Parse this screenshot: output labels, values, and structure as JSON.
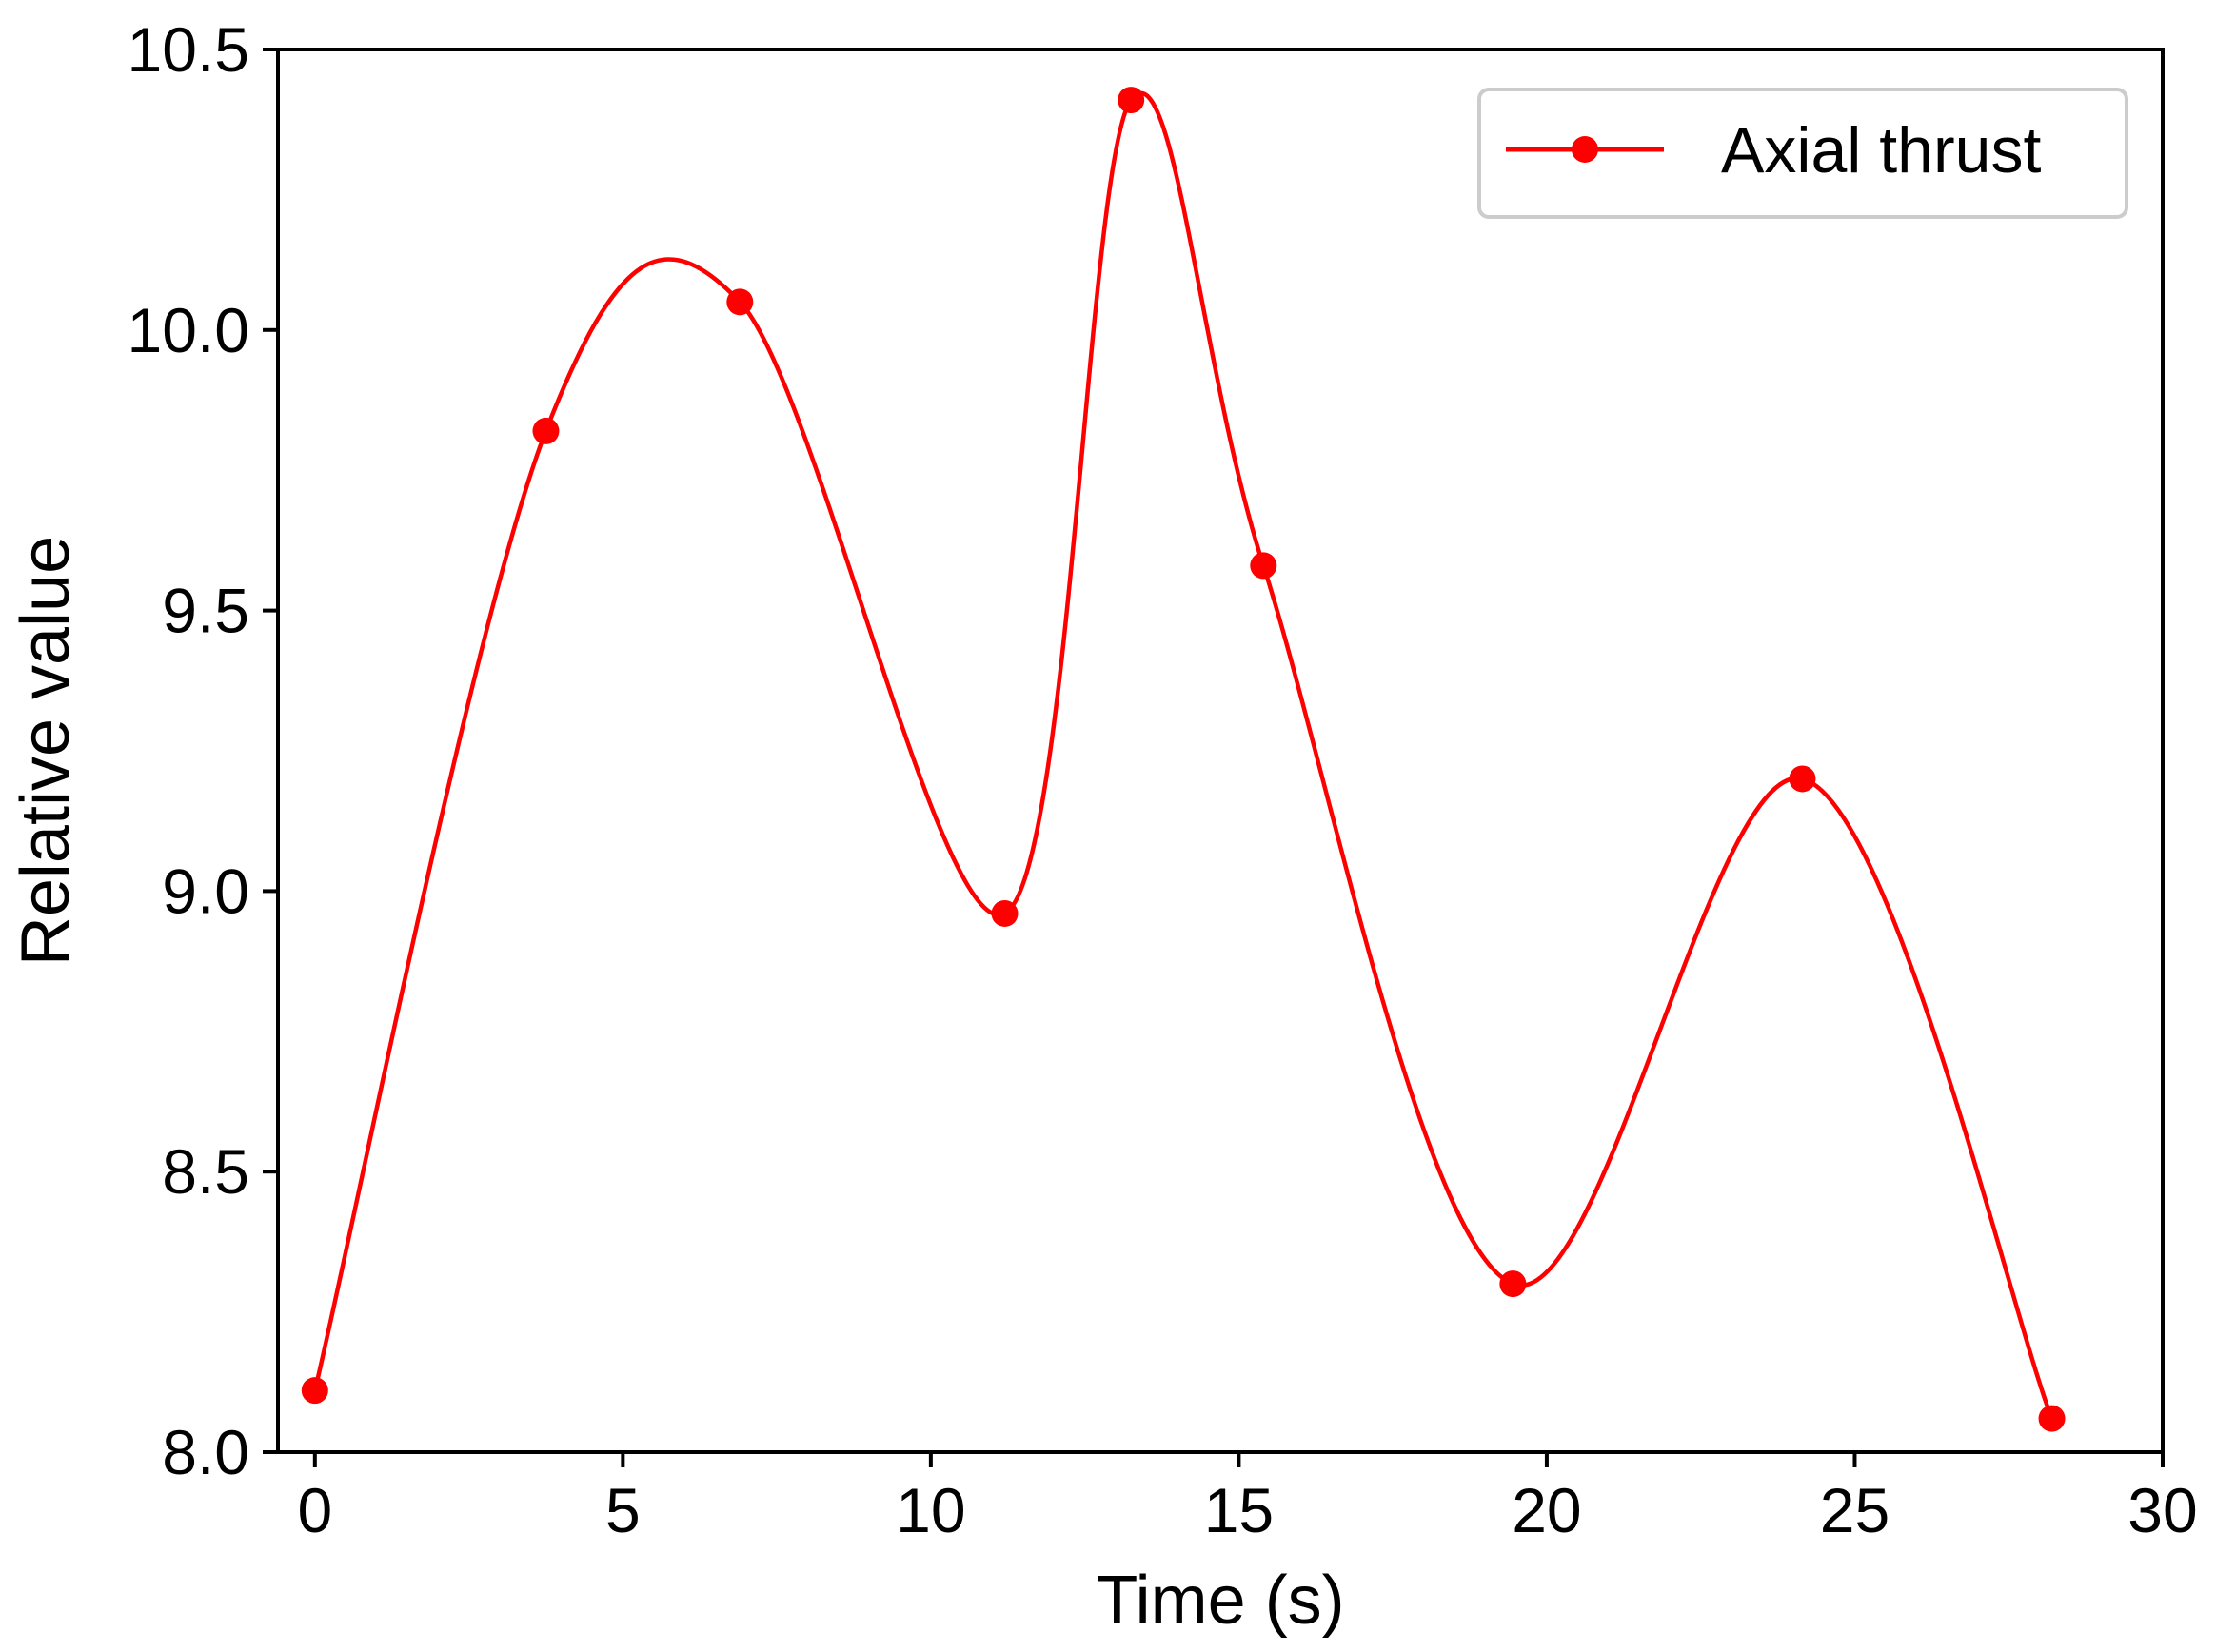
{
  "chart_data": {
    "type": "line",
    "title": "",
    "xlabel": "Time (s)",
    "ylabel": "Relative value",
    "xlim": [
      -0.6,
      30
    ],
    "ylim": [
      8.0,
      10.5
    ],
    "xticks": [
      0,
      5,
      10,
      15,
      20,
      25,
      30
    ],
    "xtick_labels": [
      "0",
      "5",
      "10",
      "15",
      "20",
      "25",
      "30"
    ],
    "yticks": [
      8.0,
      8.5,
      9.0,
      9.5,
      10.0,
      10.5
    ],
    "ytick_labels": [
      "8.0",
      "8.5",
      "9.0",
      "9.5",
      "10.0",
      "10.5"
    ],
    "grid": false,
    "legend_position": "top-right",
    "series": [
      {
        "name": "Axial thrust",
        "color": "#ff0000",
        "marker": "circle",
        "smooth": true,
        "x": [
          0,
          3.75,
          6.9,
          11.2,
          13.25,
          15.4,
          19.45,
          24.15,
          28.2
        ],
        "y": [
          8.11,
          9.82,
          10.05,
          8.96,
          10.41,
          9.58,
          8.3,
          9.2,
          8.06
        ]
      }
    ]
  }
}
